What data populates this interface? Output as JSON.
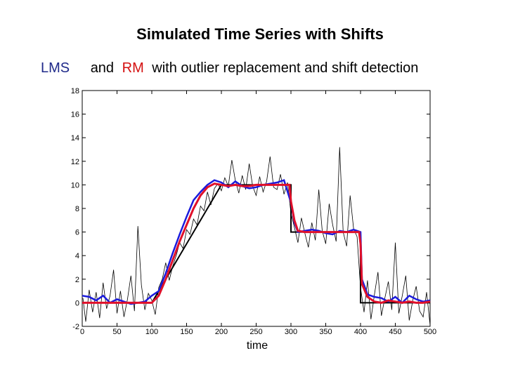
{
  "title": "Simulated Time Series with Shifts",
  "subtitle": {
    "lms": "LMS",
    "and": "and",
    "rm": "RM",
    "rest": "with outlier replacement and shift detection"
  },
  "colors": {
    "lms": "#1a1adc",
    "rm": "#e0102a",
    "truth": "#000000",
    "raw": "#000000"
  },
  "chart_data": {
    "type": "line",
    "title": "Simulated Time Series with Shifts",
    "xlabel": "time",
    "ylabel": "",
    "xlim": [
      0,
      500
    ],
    "ylim": [
      -2,
      18
    ],
    "xticks": [
      0,
      50,
      100,
      150,
      200,
      250,
      300,
      350,
      400,
      450,
      500
    ],
    "yticks": [
      -2,
      0,
      2,
      4,
      6,
      8,
      10,
      12,
      14,
      16,
      18
    ],
    "grid": false,
    "series": [
      {
        "kind": "raw",
        "x": [
          1,
          5,
          10,
          15,
          20,
          25,
          30,
          35,
          40,
          45,
          50,
          55,
          60,
          65,
          70,
          75,
          80,
          85,
          90,
          95,
          100,
          105,
          110,
          115,
          120,
          125,
          130,
          135,
          140,
          145,
          150,
          155,
          160,
          165,
          170,
          175,
          180,
          185,
          190,
          195,
          200,
          205,
          210,
          215,
          220,
          225,
          230,
          235,
          240,
          245,
          250,
          255,
          260,
          265,
          270,
          275,
          280,
          285,
          290,
          295,
          300,
          305,
          310,
          315,
          320,
          325,
          330,
          335,
          340,
          345,
          350,
          355,
          360,
          365,
          370,
          375,
          380,
          385,
          390,
          395,
          400,
          405,
          410,
          415,
          420,
          425,
          430,
          435,
          440,
          445,
          450,
          455,
          460,
          465,
          470,
          475,
          480,
          485,
          490,
          495,
          500
        ],
        "y": [
          0.4,
          -1.6,
          1.1,
          -0.8,
          0.9,
          -1.3,
          1.7,
          -0.5,
          0.6,
          2.8,
          -0.9,
          1.0,
          -1.2,
          0.3,
          2.3,
          -0.7,
          6.5,
          1.5,
          -0.6,
          0.8,
          0.2,
          -1.0,
          1.3,
          2.0,
          3.4,
          1.9,
          3.1,
          4.0,
          5.1,
          4.6,
          6.2,
          5.8,
          7.1,
          6.6,
          8.2,
          7.8,
          9.4,
          8.3,
          9.7,
          10.1,
          9.5,
          10.6,
          9.9,
          12.1,
          10.4,
          9.3,
          10.8,
          9.6,
          11.8,
          9.9,
          9.1,
          10.7,
          9.4,
          10.3,
          12.4,
          9.8,
          9.6,
          10.9,
          9.2,
          10.2,
          7.6,
          6.4,
          5.1,
          7.2,
          5.9,
          4.7,
          6.8,
          5.3,
          9.6,
          6.1,
          5.0,
          8.4,
          6.6,
          5.2,
          13.2,
          6.0,
          4.8,
          9.1,
          6.3,
          5.6,
          1.3,
          -0.8,
          1.9,
          -1.4,
          0.7,
          2.6,
          -1.1,
          0.4,
          1.8,
          -0.6,
          5.1,
          -0.9,
          0.6,
          2.3,
          -1.5,
          0.2,
          1.4,
          -0.7,
          -1.2,
          0.9,
          -1.9
        ]
      },
      {
        "name": "LMS",
        "x": [
          0,
          10,
          20,
          30,
          40,
          50,
          60,
          70,
          80,
          90,
          100,
          110,
          120,
          130,
          140,
          150,
          160,
          170,
          180,
          190,
          200,
          210,
          220,
          230,
          240,
          250,
          260,
          270,
          280,
          290,
          300,
          305,
          310,
          320,
          330,
          340,
          350,
          360,
          370,
          380,
          390,
          400,
          402,
          410,
          420,
          430,
          440,
          450,
          460,
          470,
          480,
          490,
          500
        ],
        "y": [
          0.6,
          0.5,
          0.2,
          0.6,
          0.0,
          0.3,
          0.1,
          -0.1,
          0.0,
          0.1,
          0.6,
          1.0,
          2.5,
          4.2,
          5.8,
          7.3,
          8.7,
          9.4,
          10.0,
          10.4,
          10.2,
          9.8,
          10.3,
          9.9,
          9.7,
          9.8,
          10.0,
          10.1,
          10.2,
          10.4,
          8.5,
          6.8,
          6.0,
          6.1,
          6.2,
          6.1,
          5.9,
          5.8,
          6.1,
          6.0,
          6.2,
          6.0,
          2.0,
          0.7,
          0.5,
          0.4,
          0.1,
          0.5,
          0.0,
          0.6,
          0.3,
          0.1,
          0.2
        ]
      },
      {
        "name": "RM",
        "x": [
          0,
          50,
          100,
          110,
          120,
          130,
          140,
          150,
          160,
          170,
          180,
          190,
          200,
          210,
          220,
          230,
          240,
          250,
          260,
          270,
          280,
          290,
          298,
          300,
          305,
          310,
          320,
          330,
          340,
          350,
          360,
          370,
          380,
          390,
          398,
          400,
          402,
          410,
          420,
          430,
          440,
          450,
          460,
          470,
          480,
          490,
          500
        ],
        "y": [
          0.0,
          0.0,
          0.0,
          0.6,
          2.0,
          3.6,
          5.2,
          6.6,
          8.0,
          9.1,
          9.8,
          10.1,
          10.0,
          9.9,
          10.0,
          9.9,
          9.9,
          10.0,
          10.0,
          10.0,
          10.0,
          10.0,
          10.0,
          8.6,
          7.0,
          6.1,
          6.0,
          6.0,
          6.0,
          6.0,
          6.0,
          6.0,
          6.0,
          6.0,
          6.0,
          5.0,
          1.6,
          0.5,
          0.1,
          0.0,
          0.2,
          0.1,
          0.0,
          0.1,
          0.0,
          0.0,
          0.1
        ]
      },
      {
        "kind": "truth",
        "x": [
          0,
          100,
          200,
          300,
          300,
          400,
          400,
          500
        ],
        "y": [
          0,
          0,
          10,
          10,
          6,
          6,
          0,
          0
        ]
      }
    ]
  }
}
